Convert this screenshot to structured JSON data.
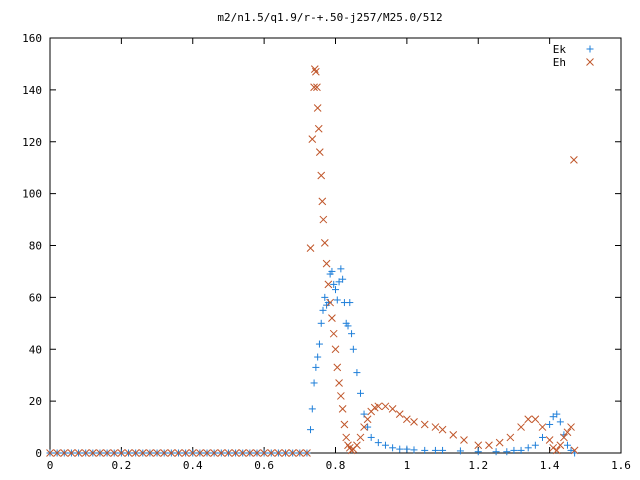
{
  "chart_data": {
    "type": "scatter",
    "title": "m2/n1.5/q1.9/r-+.50-j257/M25.0/512",
    "xlabel": "",
    "ylabel": "",
    "xlim": [
      0,
      1.6
    ],
    "ylim": [
      0,
      160
    ],
    "x_ticks": [
      0,
      0.2,
      0.4,
      0.6,
      0.8,
      1,
      1.2,
      1.4,
      1.6
    ],
    "x_tick_labels": [
      "0",
      "0.2",
      "0.4",
      "0.6",
      "0.8",
      "1",
      "1.2",
      "1.4",
      "1.6"
    ],
    "y_ticks": [
      0,
      20,
      40,
      60,
      80,
      100,
      120,
      140,
      160
    ],
    "y_tick_labels": [
      "0",
      "20",
      "40",
      "60",
      "80",
      "100",
      "120",
      "140",
      "160"
    ],
    "grid": false,
    "legend_position": "top-right",
    "series": [
      {
        "name": "Ek",
        "marker": "+",
        "color": "#1f7fd9",
        "points": [
          [
            0,
            0
          ],
          [
            0.02,
            0
          ],
          [
            0.04,
            0
          ],
          [
            0.06,
            0
          ],
          [
            0.08,
            0
          ],
          [
            0.1,
            0
          ],
          [
            0.12,
            0
          ],
          [
            0.14,
            0
          ],
          [
            0.16,
            0
          ],
          [
            0.18,
            0
          ],
          [
            0.2,
            0
          ],
          [
            0.22,
            0
          ],
          [
            0.24,
            0
          ],
          [
            0.26,
            0
          ],
          [
            0.28,
            0
          ],
          [
            0.3,
            0
          ],
          [
            0.32,
            0
          ],
          [
            0.34,
            0
          ],
          [
            0.36,
            0
          ],
          [
            0.38,
            0
          ],
          [
            0.4,
            0
          ],
          [
            0.42,
            0
          ],
          [
            0.44,
            0
          ],
          [
            0.46,
            0
          ],
          [
            0.48,
            0
          ],
          [
            0.5,
            0
          ],
          [
            0.52,
            0
          ],
          [
            0.54,
            0
          ],
          [
            0.56,
            0
          ],
          [
            0.58,
            0
          ],
          [
            0.6,
            0
          ],
          [
            0.62,
            0
          ],
          [
            0.64,
            0
          ],
          [
            0.66,
            0
          ],
          [
            0.68,
            0
          ],
          [
            0.7,
            0
          ],
          [
            0.72,
            0
          ],
          [
            0.73,
            9
          ],
          [
            0.735,
            17
          ],
          [
            0.74,
            27
          ],
          [
            0.745,
            33
          ],
          [
            0.75,
            37
          ],
          [
            0.755,
            42
          ],
          [
            0.76,
            50
          ],
          [
            0.765,
            55
          ],
          [
            0.77,
            60
          ],
          [
            0.775,
            57
          ],
          [
            0.78,
            58
          ],
          [
            0.785,
            69
          ],
          [
            0.79,
            70
          ],
          [
            0.795,
            65
          ],
          [
            0.8,
            63
          ],
          [
            0.805,
            59
          ],
          [
            0.81,
            66
          ],
          [
            0.815,
            71
          ],
          [
            0.82,
            67
          ],
          [
            0.825,
            58
          ],
          [
            0.83,
            50
          ],
          [
            0.835,
            49
          ],
          [
            0.84,
            58
          ],
          [
            0.845,
            46
          ],
          [
            0.85,
            40
          ],
          [
            0.86,
            31
          ],
          [
            0.87,
            23
          ],
          [
            0.88,
            15
          ],
          [
            0.89,
            10
          ],
          [
            0.9,
            6
          ],
          [
            0.92,
            4
          ],
          [
            0.94,
            3
          ],
          [
            0.96,
            2
          ],
          [
            0.98,
            1.5
          ],
          [
            1.0,
            1.5
          ],
          [
            1.02,
            1.2
          ],
          [
            1.05,
            1
          ],
          [
            1.08,
            1
          ],
          [
            1.1,
            1
          ],
          [
            1.15,
            0.8
          ],
          [
            1.2,
            0.5
          ],
          [
            1.25,
            0.5
          ],
          [
            1.28,
            0.5
          ],
          [
            1.3,
            1
          ],
          [
            1.32,
            1
          ],
          [
            1.34,
            2
          ],
          [
            1.36,
            3
          ],
          [
            1.38,
            6
          ],
          [
            1.4,
            11
          ],
          [
            1.41,
            14
          ],
          [
            1.42,
            15
          ],
          [
            1.43,
            12
          ],
          [
            1.44,
            7
          ],
          [
            1.45,
            3
          ],
          [
            1.46,
            1
          ],
          [
            1.47,
            0
          ]
        ]
      },
      {
        "name": "Eh",
        "marker": "x",
        "color": "#c0562a",
        "points": [
          [
            0,
            0
          ],
          [
            0.02,
            0
          ],
          [
            0.04,
            0
          ],
          [
            0.06,
            0
          ],
          [
            0.08,
            0
          ],
          [
            0.1,
            0
          ],
          [
            0.12,
            0
          ],
          [
            0.14,
            0
          ],
          [
            0.16,
            0
          ],
          [
            0.18,
            0
          ],
          [
            0.2,
            0
          ],
          [
            0.22,
            0
          ],
          [
            0.24,
            0
          ],
          [
            0.26,
            0
          ],
          [
            0.28,
            0
          ],
          [
            0.3,
            0
          ],
          [
            0.32,
            0
          ],
          [
            0.34,
            0
          ],
          [
            0.36,
            0
          ],
          [
            0.38,
            0
          ],
          [
            0.4,
            0
          ],
          [
            0.42,
            0
          ],
          [
            0.44,
            0
          ],
          [
            0.46,
            0
          ],
          [
            0.48,
            0
          ],
          [
            0.5,
            0
          ],
          [
            0.52,
            0
          ],
          [
            0.54,
            0
          ],
          [
            0.56,
            0
          ],
          [
            0.58,
            0
          ],
          [
            0.6,
            0
          ],
          [
            0.62,
            0
          ],
          [
            0.64,
            0
          ],
          [
            0.66,
            0
          ],
          [
            0.68,
            0
          ],
          [
            0.7,
            0
          ],
          [
            0.72,
            0
          ],
          [
            0.73,
            79
          ],
          [
            0.735,
            121
          ],
          [
            0.74,
            141
          ],
          [
            0.742,
            148
          ],
          [
            0.745,
            147
          ],
          [
            0.748,
            141
          ],
          [
            0.75,
            133
          ],
          [
            0.753,
            125
          ],
          [
            0.756,
            116
          ],
          [
            0.76,
            107
          ],
          [
            0.763,
            97
          ],
          [
            0.766,
            90
          ],
          [
            0.77,
            81
          ],
          [
            0.775,
            73
          ],
          [
            0.78,
            65
          ],
          [
            0.785,
            58
          ],
          [
            0.79,
            52
          ],
          [
            0.795,
            46
          ],
          [
            0.8,
            40
          ],
          [
            0.805,
            33
          ],
          [
            0.81,
            27
          ],
          [
            0.815,
            22
          ],
          [
            0.82,
            17
          ],
          [
            0.825,
            11
          ],
          [
            0.83,
            6
          ],
          [
            0.835,
            3
          ],
          [
            0.84,
            2
          ],
          [
            0.845,
            1
          ],
          [
            0.85,
            1.5
          ],
          [
            0.86,
            3
          ],
          [
            0.87,
            6
          ],
          [
            0.88,
            10
          ],
          [
            0.89,
            13
          ],
          [
            0.9,
            16
          ],
          [
            0.91,
            17.5
          ],
          [
            0.92,
            18
          ],
          [
            0.94,
            18
          ],
          [
            0.96,
            17
          ],
          [
            0.98,
            15
          ],
          [
            1.0,
            13
          ],
          [
            1.02,
            12
          ],
          [
            1.05,
            11
          ],
          [
            1.08,
            10
          ],
          [
            1.1,
            9
          ],
          [
            1.13,
            7
          ],
          [
            1.16,
            5
          ],
          [
            1.2,
            3
          ],
          [
            1.23,
            3
          ],
          [
            1.26,
            4
          ],
          [
            1.29,
            6
          ],
          [
            1.32,
            10
          ],
          [
            1.34,
            13
          ],
          [
            1.36,
            13
          ],
          [
            1.38,
            10
          ],
          [
            1.4,
            5
          ],
          [
            1.41,
            2
          ],
          [
            1.42,
            1
          ],
          [
            1.43,
            3
          ],
          [
            1.44,
            6
          ],
          [
            1.45,
            8
          ],
          [
            1.46,
            10
          ],
          [
            1.47,
            1
          ],
          [
            1.468,
            113
          ]
        ]
      }
    ]
  }
}
